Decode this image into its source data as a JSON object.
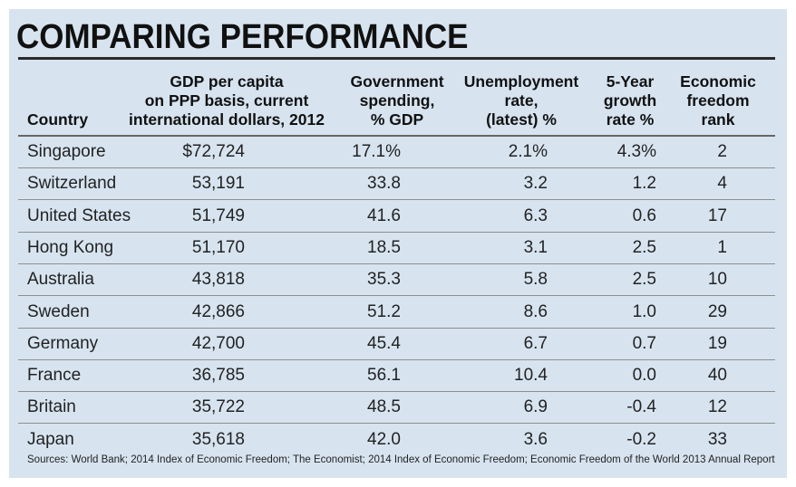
{
  "chart_data": {
    "type": "table",
    "title": "COMPARING PERFORMANCE",
    "columns": [
      {
        "key": "country",
        "lines": [
          "Country"
        ]
      },
      {
        "key": "gdp",
        "lines": [
          "GDP per capita",
          "on PPP basis, current",
          "international dollars, 2012"
        ]
      },
      {
        "key": "gov",
        "lines": [
          "Government",
          "spending,",
          "% GDP"
        ]
      },
      {
        "key": "unemp",
        "lines": [
          "Unemployment",
          "rate,",
          "(latest) %"
        ]
      },
      {
        "key": "growth",
        "lines": [
          "5-Year",
          "growth",
          "rate %"
        ]
      },
      {
        "key": "rank",
        "lines": [
          "Economic",
          "freedom",
          "rank"
        ]
      }
    ],
    "rows": [
      {
        "country": "Singapore",
        "gdp": "$72,724",
        "gov": "17.1%",
        "unemp": "2.1%",
        "growth": "4.3%",
        "rank": "2"
      },
      {
        "country": "Switzerland",
        "gdp": "53,191",
        "gov": "33.8",
        "unemp": "3.2",
        "growth": "1.2",
        "rank": "4"
      },
      {
        "country": "United States",
        "gdp": "51,749",
        "gov": "41.6",
        "unemp": "6.3",
        "growth": "0.6",
        "rank": "17"
      },
      {
        "country": "Hong Kong",
        "gdp": "51,170",
        "gov": "18.5",
        "unemp": "3.1",
        "growth": "2.5",
        "rank": "1"
      },
      {
        "country": "Australia",
        "gdp": "43,818",
        "gov": "35.3",
        "unemp": "5.8",
        "growth": "2.5",
        "rank": "10"
      },
      {
        "country": "Sweden",
        "gdp": "42,866",
        "gov": "51.2",
        "unemp": "8.6",
        "growth": "1.0",
        "rank": "29"
      },
      {
        "country": "Germany",
        "gdp": "42,700",
        "gov": "45.4",
        "unemp": "6.7",
        "growth": "0.7",
        "rank": "19"
      },
      {
        "country": "France",
        "gdp": "36,785",
        "gov": "56.1",
        "unemp": "10.4",
        "growth": "0.0",
        "rank": "40"
      },
      {
        "country": "Britain",
        "gdp": "35,722",
        "gov": "48.5",
        "unemp": "6.9",
        "growth": "-0.4",
        "rank": "12"
      },
      {
        "country": "Japan",
        "gdp": "35,618",
        "gov": "42.0",
        "unemp": "3.6",
        "growth": "-0.2",
        "rank": "33"
      }
    ],
    "source": "Sources: World Bank; 2014 Index  of Economic Freedom; The Economist; 2014 Index  of Economic Freedom; Economic Freedom of the World 2013 Annual Report"
  },
  "colors": {
    "panel_background": "#d7e4f0",
    "text": "#222222",
    "rules": "#8e8e8e"
  }
}
